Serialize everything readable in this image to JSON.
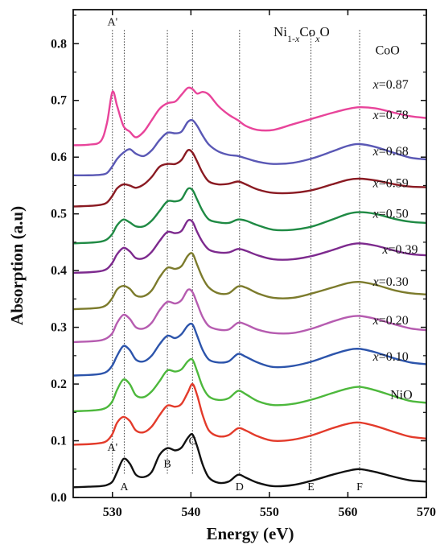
{
  "chart_data": {
    "type": "line",
    "title": "",
    "formula": {
      "base": "Ni",
      "sub1": "1-",
      "subx": "x",
      "mid": "Co",
      "sub2": "x",
      "end": "O"
    },
    "xlabel": "Energy (eV)",
    "ylabel": "Absorption (a.u)",
    "xlim": [
      525,
      570
    ],
    "ylim": [
      0.0,
      0.86
    ],
    "xticks": [
      530,
      540,
      550,
      560,
      570
    ],
    "yticks": [
      0.0,
      0.1,
      0.2,
      0.3,
      0.4,
      0.5,
      0.6,
      0.7,
      0.8
    ],
    "grid": false,
    "reference_lines": [
      530.0,
      531.5,
      537.0,
      540.2,
      546.2,
      555.3,
      561.5
    ],
    "feature_labels": {
      "top": [
        {
          "text": "A'",
          "x": 530.0,
          "y": 0.832
        }
      ],
      "bottom": [
        {
          "text": "A'",
          "x": 530.0,
          "y": 0.082
        },
        {
          "text": "A",
          "x": 531.5,
          "y": 0.013
        },
        {
          "text": "B",
          "x": 537.0,
          "y": 0.053
        },
        {
          "text": "C",
          "x": 540.2,
          "y": 0.094
        },
        {
          "text": "D",
          "x": 546.2,
          "y": 0.013
        },
        {
          "text": "E",
          "x": 555.3,
          "y": 0.013
        },
        {
          "text": "F",
          "x": 561.5,
          "y": 0.013
        }
      ]
    },
    "x": [
      525.0,
      527.0,
      528.5,
      529.3,
      530.0,
      530.6,
      531.4,
      532.2,
      533.0,
      534.0,
      535.0,
      536.0,
      537.0,
      538.0,
      538.8,
      539.6,
      540.2,
      540.8,
      541.5,
      542.3,
      543.5,
      544.8,
      546.0,
      547.0,
      548.5,
      550.5,
      553.0,
      555.5,
      558.0,
      560.0,
      561.5,
      563.5,
      566.0,
      568.0,
      570.0
    ],
    "series": [
      {
        "name": "CoO",
        "label_x": 563.5,
        "label_y": 0.781,
        "color": "#e8449a",
        "values": [
          0.721,
          0.722,
          0.728,
          0.76,
          0.815,
          0.79,
          0.755,
          0.745,
          0.735,
          0.745,
          0.765,
          0.785,
          0.795,
          0.798,
          0.81,
          0.822,
          0.82,
          0.812,
          0.815,
          0.81,
          0.79,
          0.775,
          0.765,
          0.755,
          0.748,
          0.748,
          0.758,
          0.768,
          0.778,
          0.785,
          0.788,
          0.786,
          0.778,
          0.772,
          0.769
        ]
      },
      {
        "name": "x=0.87",
        "label_x": 563.2,
        "label_y": 0.721,
        "color": "#5a58b5",
        "values": [
          0.668,
          0.668,
          0.669,
          0.672,
          0.684,
          0.697,
          0.708,
          0.714,
          0.706,
          0.702,
          0.712,
          0.73,
          0.743,
          0.742,
          0.745,
          0.762,
          0.765,
          0.755,
          0.738,
          0.722,
          0.71,
          0.704,
          0.702,
          0.698,
          0.692,
          0.688,
          0.69,
          0.698,
          0.71,
          0.72,
          0.723,
          0.718,
          0.707,
          0.699,
          0.696
        ]
      },
      {
        "name": "x=0.78",
        "label_x": 563.2,
        "label_y": 0.667,
        "color": "#8a1a22",
        "values": [
          0.613,
          0.614,
          0.616,
          0.62,
          0.632,
          0.645,
          0.652,
          0.65,
          0.646,
          0.652,
          0.665,
          0.683,
          0.688,
          0.688,
          0.695,
          0.712,
          0.708,
          0.692,
          0.672,
          0.657,
          0.652,
          0.653,
          0.657,
          0.652,
          0.643,
          0.637,
          0.637,
          0.642,
          0.652,
          0.66,
          0.662,
          0.659,
          0.652,
          0.648,
          0.647
        ]
      },
      {
        "name": "x=0.68",
        "label_x": 563.2,
        "label_y": 0.603,
        "color": "#1f8a44",
        "values": [
          0.548,
          0.549,
          0.551,
          0.555,
          0.565,
          0.58,
          0.59,
          0.585,
          0.578,
          0.578,
          0.588,
          0.605,
          0.622,
          0.622,
          0.626,
          0.644,
          0.642,
          0.625,
          0.605,
          0.59,
          0.585,
          0.584,
          0.59,
          0.588,
          0.58,
          0.572,
          0.572,
          0.578,
          0.59,
          0.6,
          0.603,
          0.6,
          0.591,
          0.586,
          0.584
        ]
      },
      {
        "name": "x=0.59",
        "label_x": 563.2,
        "label_y": 0.547,
        "color": "#7d2a8e",
        "values": [
          0.496,
          0.497,
          0.499,
          0.503,
          0.514,
          0.529,
          0.54,
          0.534,
          0.522,
          0.522,
          0.533,
          0.552,
          0.568,
          0.566,
          0.57,
          0.588,
          0.586,
          0.568,
          0.55,
          0.537,
          0.532,
          0.532,
          0.538,
          0.535,
          0.527,
          0.52,
          0.52,
          0.526,
          0.536,
          0.545,
          0.548,
          0.544,
          0.535,
          0.529,
          0.527
        ]
      },
      {
        "name": "x=0.50",
        "label_x": 563.2,
        "label_y": 0.493,
        "color": "#7c7b2c",
        "values": [
          0.432,
          0.433,
          0.435,
          0.44,
          0.452,
          0.467,
          0.473,
          0.468,
          0.456,
          0.455,
          0.465,
          0.488,
          0.505,
          0.503,
          0.508,
          0.526,
          0.53,
          0.51,
          0.487,
          0.47,
          0.46,
          0.46,
          0.472,
          0.47,
          0.46,
          0.452,
          0.452,
          0.46,
          0.47,
          0.478,
          0.48,
          0.475,
          0.465,
          0.46,
          0.458
        ]
      },
      {
        "name": "x=0.39",
        "label_x": 564.4,
        "label_y": 0.43,
        "color": "#b65cb0",
        "values": [
          0.374,
          0.375,
          0.377,
          0.381,
          0.39,
          0.408,
          0.422,
          0.415,
          0.4,
          0.398,
          0.408,
          0.43,
          0.445,
          0.442,
          0.448,
          0.466,
          0.462,
          0.442,
          0.418,
          0.402,
          0.396,
          0.396,
          0.408,
          0.405,
          0.396,
          0.39,
          0.39,
          0.398,
          0.41,
          0.418,
          0.42,
          0.415,
          0.405,
          0.398,
          0.395
        ]
      },
      {
        "name": "x=0.30",
        "label_x": 563.2,
        "label_y": 0.373,
        "color": "#2c54ab",
        "values": [
          0.315,
          0.316,
          0.318,
          0.322,
          0.333,
          0.35,
          0.367,
          0.36,
          0.343,
          0.34,
          0.35,
          0.37,
          0.385,
          0.381,
          0.388,
          0.403,
          0.405,
          0.385,
          0.36,
          0.343,
          0.338,
          0.34,
          0.353,
          0.348,
          0.338,
          0.33,
          0.332,
          0.34,
          0.352,
          0.36,
          0.362,
          0.356,
          0.345,
          0.338,
          0.335
        ]
      },
      {
        "name": "x=0.20",
        "label_x": 563.2,
        "label_y": 0.305,
        "color": "#4db83c",
        "values": [
          0.252,
          0.253,
          0.255,
          0.259,
          0.27,
          0.29,
          0.308,
          0.3,
          0.28,
          0.277,
          0.287,
          0.305,
          0.324,
          0.322,
          0.326,
          0.34,
          0.343,
          0.322,
          0.295,
          0.278,
          0.272,
          0.275,
          0.288,
          0.282,
          0.27,
          0.263,
          0.265,
          0.273,
          0.284,
          0.292,
          0.295,
          0.289,
          0.278,
          0.27,
          0.267
        ]
      },
      {
        "name": "x=0.10",
        "label_x": 563.2,
        "label_y": 0.241,
        "color": "#e33b2b",
        "values": [
          0.193,
          0.194,
          0.196,
          0.2,
          0.212,
          0.232,
          0.242,
          0.235,
          0.218,
          0.215,
          0.225,
          0.245,
          0.262,
          0.26,
          0.265,
          0.285,
          0.3,
          0.28,
          0.245,
          0.218,
          0.208,
          0.21,
          0.222,
          0.218,
          0.208,
          0.2,
          0.202,
          0.21,
          0.222,
          0.23,
          0.232,
          0.226,
          0.215,
          0.207,
          0.204
        ]
      },
      {
        "name": "NiO",
        "label_x": 565.4,
        "label_y": 0.174,
        "color": "#111111",
        "values": [
          0.118,
          0.119,
          0.12,
          0.122,
          0.128,
          0.145,
          0.168,
          0.16,
          0.14,
          0.136,
          0.145,
          0.175,
          0.187,
          0.183,
          0.188,
          0.205,
          0.211,
          0.19,
          0.158,
          0.135,
          0.126,
          0.128,
          0.14,
          0.135,
          0.126,
          0.12,
          0.122,
          0.13,
          0.14,
          0.147,
          0.15,
          0.145,
          0.136,
          0.13,
          0.128
        ]
      }
    ],
    "value_offset": -0.1
  }
}
